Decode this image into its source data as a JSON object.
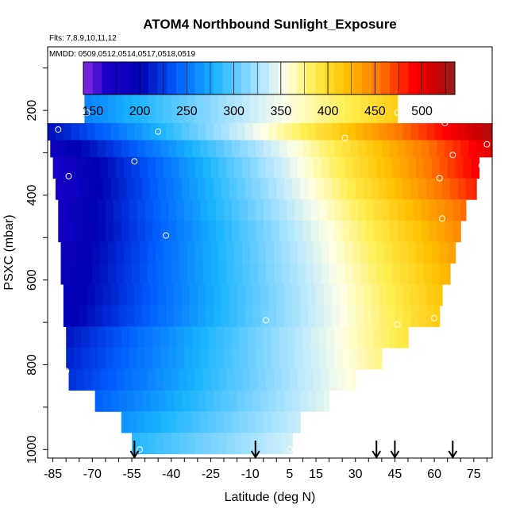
{
  "chart_data": {
    "type": "heatmap",
    "title": "ATOM4 Northbound Sunlight_Exposure",
    "subtitle_lines": [
      "Flts: 7,8,9,10,11,12",
      "MMDD: 0509,0512,0514,0517,0518,0519"
    ],
    "xlabel": "Latitude (deg N)",
    "ylabel": "PSXC (mbar)",
    "xlim": [
      -87,
      82
    ],
    "ylim": [
      1020,
      50
    ],
    "y_reversed": true,
    "x_ticks": [
      -85,
      -70,
      -55,
      -40,
      -25,
      -10,
      5,
      15,
      30,
      45,
      60,
      75
    ],
    "x_tick_labels": [
      "-85",
      "-70",
      "-55",
      "-40",
      "-25",
      "-10",
      "5",
      "15",
      "30",
      "45",
      "60",
      "75"
    ],
    "y_ticks": [
      200,
      400,
      600,
      800,
      1000
    ],
    "y_tick_labels": [
      "200",
      "400",
      "600",
      "800",
      "1000"
    ],
    "colorbar": {
      "min": 140,
      "max": 535,
      "ticks": [
        150,
        200,
        250,
        300,
        350,
        400,
        450,
        500
      ],
      "tick_labels": [
        "150",
        "200",
        "250",
        "300",
        "350",
        "400",
        "450",
        "500"
      ],
      "stops": [
        {
          "v": 140,
          "c": "#8a2be2"
        },
        {
          "v": 165,
          "c": "#1a00c8"
        },
        {
          "v": 200,
          "c": "#0000b4"
        },
        {
          "v": 240,
          "c": "#0060ff"
        },
        {
          "v": 280,
          "c": "#1ab4ff"
        },
        {
          "v": 330,
          "c": "#b4e6ff"
        },
        {
          "v": 355,
          "c": "#ffffe6"
        },
        {
          "v": 385,
          "c": "#ffee50"
        },
        {
          "v": 420,
          "c": "#ffc000"
        },
        {
          "v": 455,
          "c": "#ff7800"
        },
        {
          "v": 490,
          "c": "#ff0000"
        },
        {
          "v": 515,
          "c": "#c80000"
        },
        {
          "v": 535,
          "c": "#961e1e"
        }
      ]
    },
    "pressure_bands": [
      {
        "p_top": 160,
        "p_bot": 230,
        "lat_min": -73,
        "lat_max": 46,
        "v_south": 240,
        "v_north": 460
      },
      {
        "p_top": 230,
        "p_bot": 270,
        "lat_min": -87,
        "lat_max": 82,
        "v_south": 205,
        "v_north": 525
      },
      {
        "p_top": 270,
        "p_bot": 310,
        "lat_min": -86,
        "lat_max": 82,
        "v_south": 180,
        "v_north": 505
      },
      {
        "p_top": 310,
        "p_bot": 360,
        "lat_min": -85,
        "lat_max": 77,
        "v_south": 165,
        "v_north": 505
      },
      {
        "p_top": 360,
        "p_bot": 410,
        "lat_min": -84,
        "lat_max": 76,
        "v_south": 165,
        "v_north": 495
      },
      {
        "p_top": 410,
        "p_bot": 460,
        "lat_min": -83,
        "lat_max": 72,
        "v_south": 170,
        "v_north": 480
      },
      {
        "p_top": 460,
        "p_bot": 510,
        "lat_min": -83,
        "lat_max": 70,
        "v_south": 170,
        "v_north": 470
      },
      {
        "p_top": 510,
        "p_bot": 560,
        "lat_min": -82,
        "lat_max": 68,
        "v_south": 175,
        "v_north": 462
      },
      {
        "p_top": 560,
        "p_bot": 610,
        "lat_min": -82,
        "lat_max": 66,
        "v_south": 178,
        "v_north": 455
      },
      {
        "p_top": 610,
        "p_bot": 660,
        "lat_min": -81,
        "lat_max": 63,
        "v_south": 180,
        "v_north": 450
      },
      {
        "p_top": 660,
        "p_bot": 710,
        "lat_min": -81,
        "lat_max": 62,
        "v_south": 185,
        "v_north": 445
      },
      {
        "p_top": 710,
        "p_bot": 760,
        "lat_min": -80,
        "lat_max": 50,
        "v_south": 200,
        "v_north": 440
      },
      {
        "p_top": 760,
        "p_bot": 810,
        "lat_min": -80,
        "lat_max": 40,
        "v_south": 205,
        "v_north": 435
      },
      {
        "p_top": 810,
        "p_bot": 860,
        "lat_min": -79,
        "lat_max": 30,
        "v_south": 210,
        "v_north": 430
      },
      {
        "p_top": 860,
        "p_bot": 910,
        "lat_min": -69,
        "lat_max": 20,
        "v_south": 220,
        "v_north": 425
      },
      {
        "p_top": 910,
        "p_bot": 960,
        "lat_min": -59,
        "lat_max": 9,
        "v_south": 235,
        "v_north": 420
      },
      {
        "p_top": 960,
        "p_bot": 1010,
        "lat_min": -55,
        "lat_max": 6,
        "v_south": 255,
        "v_north": 415
      }
    ],
    "sample_points": [
      {
        "lat": -86,
        "p": 215
      },
      {
        "lat": -83,
        "p": 245
      },
      {
        "lat": -72,
        "p": 205
      },
      {
        "lat": -79,
        "p": 355
      },
      {
        "lat": -54,
        "p": 320
      },
      {
        "lat": -45,
        "p": 250
      },
      {
        "lat": -42,
        "p": 495
      },
      {
        "lat": -80,
        "p": 815
      },
      {
        "lat": -52,
        "p": 1000
      },
      {
        "lat": -4,
        "p": 695
      },
      {
        "lat": 5,
        "p": 1000
      },
      {
        "lat": 18,
        "p": 440
      },
      {
        "lat": 26,
        "p": 265
      },
      {
        "lat": 46,
        "p": 205
      },
      {
        "lat": 46,
        "p": 705
      },
      {
        "lat": 60,
        "p": 690
      },
      {
        "lat": 62,
        "p": 360
      },
      {
        "lat": 63,
        "p": 455
      },
      {
        "lat": 64,
        "p": 230
      },
      {
        "lat": 67,
        "p": 305
      },
      {
        "lat": 76,
        "p": 220
      },
      {
        "lat": 78,
        "p": 330
      },
      {
        "lat": 80,
        "p": 280
      }
    ],
    "flight_markers_lat": [
      -54,
      -8,
      38,
      45,
      67
    ],
    "grid": false
  }
}
